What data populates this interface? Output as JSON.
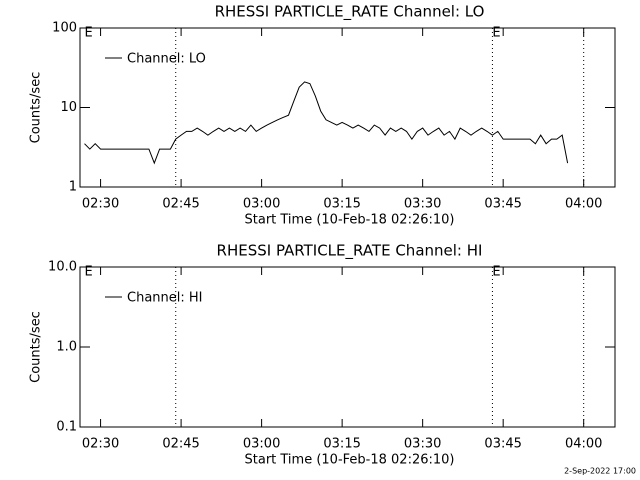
{
  "chart_data": [
    {
      "type": "line",
      "title": "RHESSI PARTICLE_RATE Channel: LO",
      "xlabel": "Start Time (10-Feb-18 02:26:10)",
      "ylabel": "Counts/sec",
      "log_y": true,
      "xlim": [
        "02:26:10",
        "04:05:50"
      ],
      "xticks": [
        "02:30",
        "02:45",
        "03:00",
        "03:15",
        "03:30",
        "03:45",
        "04:00"
      ],
      "ylim": [
        1,
        100
      ],
      "yticks": [
        1,
        10,
        100
      ],
      "legend": "upper left",
      "vlines": [
        "02:44",
        "03:43",
        "04:00"
      ],
      "annotations": [
        {
          "text": "E",
          "x": "02:27"
        },
        {
          "text": "E",
          "x": "03:43"
        }
      ],
      "series": [
        {
          "name": "Channel: LO",
          "color": "#000000",
          "x": [
            "02:27",
            "02:28",
            "02:29",
            "02:30",
            "02:31",
            "02:32",
            "02:33",
            "02:34",
            "02:35",
            "02:36",
            "02:37",
            "02:38",
            "02:39",
            "02:40",
            "02:41",
            "02:42",
            "02:43",
            "02:44",
            "02:45",
            "02:46",
            "02:47",
            "02:48",
            "02:49",
            "02:50",
            "02:51",
            "02:52",
            "02:53",
            "02:54",
            "02:55",
            "02:56",
            "02:57",
            "02:58",
            "02:59",
            "03:00",
            "03:01",
            "03:02",
            "03:03",
            "03:04",
            "03:05",
            "03:06",
            "03:07",
            "03:08",
            "03:09",
            "03:10",
            "03:11",
            "03:12",
            "03:13",
            "03:14",
            "03:15",
            "03:16",
            "03:17",
            "03:18",
            "03:19",
            "03:20",
            "03:21",
            "03:22",
            "03:23",
            "03:24",
            "03:25",
            "03:26",
            "03:27",
            "03:28",
            "03:29",
            "03:30",
            "03:31",
            "03:32",
            "03:33",
            "03:34",
            "03:35",
            "03:36",
            "03:37",
            "03:38",
            "03:39",
            "03:40",
            "03:41",
            "03:42",
            "03:43",
            "03:44",
            "03:45",
            "03:46",
            "03:47",
            "03:48",
            "03:49",
            "03:50",
            "03:51",
            "03:52",
            "03:53",
            "03:54",
            "03:55",
            "03:56",
            "03:57"
          ],
          "values": [
            3.5,
            3,
            3.5,
            3,
            3,
            3,
            3,
            3,
            3,
            3,
            3,
            3,
            3,
            2,
            3,
            3,
            3,
            4,
            4.5,
            5,
            5,
            5.5,
            5,
            4.5,
            5,
            5.5,
            5,
            5.5,
            5,
            5.5,
            5,
            6,
            5,
            5.5,
            6,
            6.5,
            7,
            7.5,
            8,
            12,
            18,
            21,
            20,
            14,
            9,
            7,
            6.5,
            6,
            6.5,
            6,
            5.5,
            6,
            5.5,
            5,
            6,
            5.5,
            4.5,
            5.5,
            5,
            5.5,
            5,
            4,
            5,
            5.5,
            4.5,
            5,
            5.5,
            4.5,
            5,
            4,
            5.5,
            5,
            4.5,
            5,
            5.5,
            5,
            4.5,
            5,
            4,
            4,
            4,
            4,
            4,
            4,
            3.5,
            4.5,
            3.5,
            4,
            4,
            4.5,
            2
          ]
        }
      ]
    },
    {
      "type": "line",
      "title": "RHESSI PARTICLE_RATE Channel: HI",
      "xlabel": "Start Time (10-Feb-18 02:26:10)",
      "ylabel": "Counts/sec",
      "log_y": true,
      "xlim": [
        "02:26:10",
        "04:05:50"
      ],
      "xticks": [
        "02:30",
        "02:45",
        "03:00",
        "03:15",
        "03:30",
        "03:45",
        "04:00"
      ],
      "ylim": [
        0.1,
        10
      ],
      "yticks": [
        0.1,
        {
          "value": 1,
          "label": "1.0"
        },
        {
          "value": 10,
          "label": "10.0"
        }
      ],
      "legend": "upper left",
      "vlines": [
        "02:44",
        "03:43",
        "04:00"
      ],
      "annotations": [
        {
          "text": "E",
          "x": "02:27"
        },
        {
          "text": "E",
          "x": "03:43"
        }
      ],
      "series": [
        {
          "name": "Channel: HI",
          "color": "#000000",
          "x": [],
          "values": []
        }
      ]
    }
  ],
  "footer": "2-Sep-2022 17:00"
}
